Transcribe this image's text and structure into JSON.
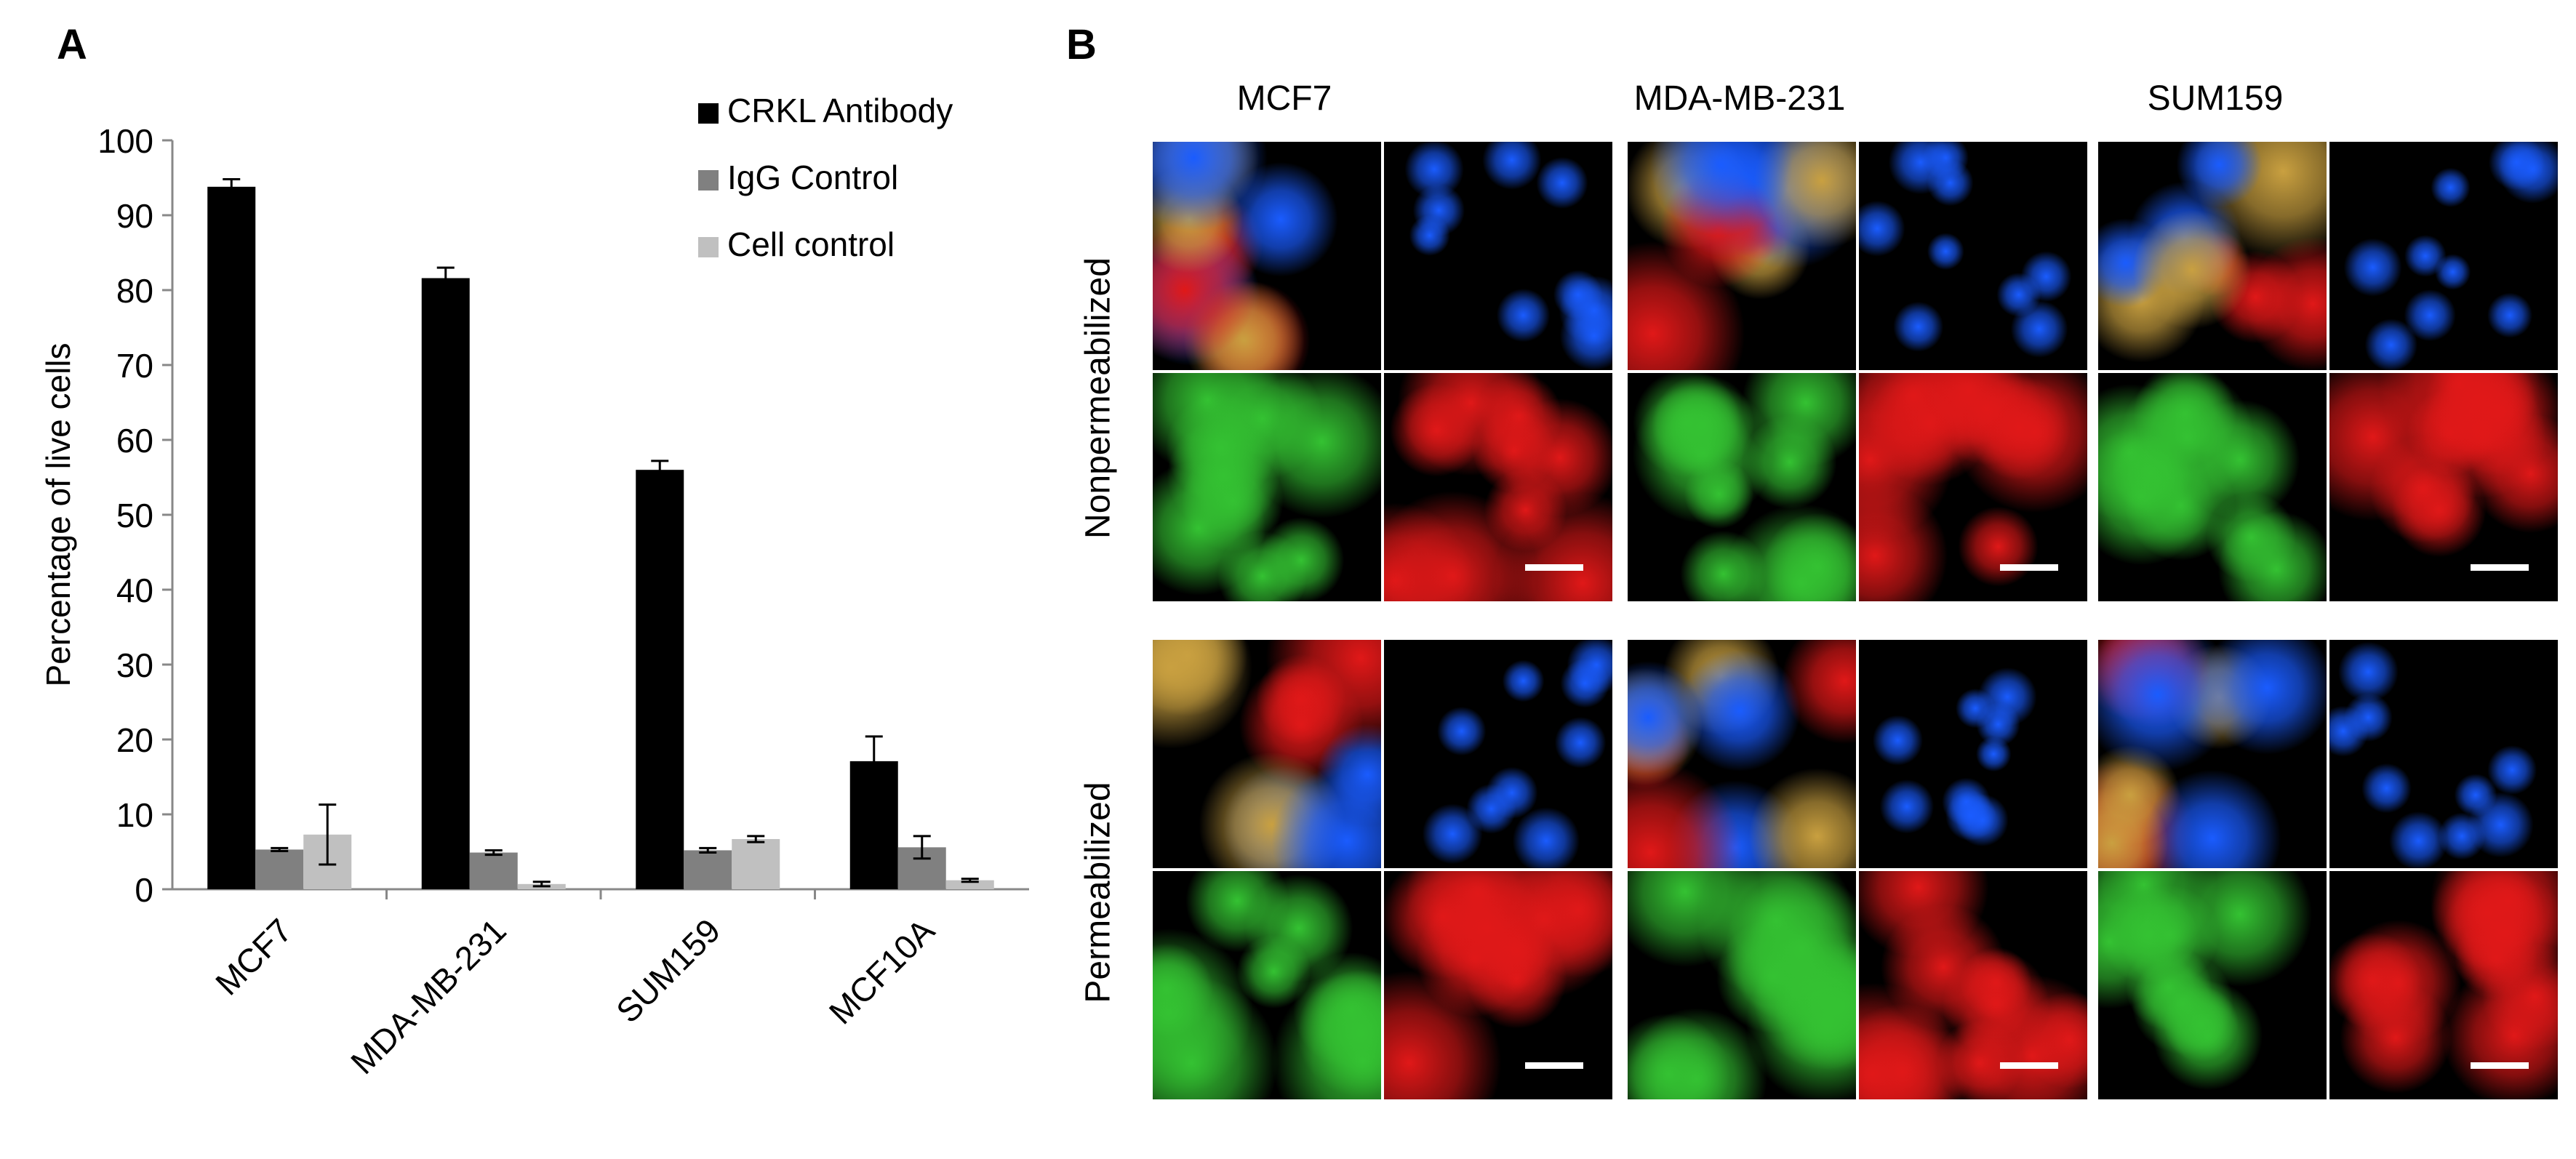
{
  "panel_labels": {
    "a": "A",
    "b": "B"
  },
  "chart_data": {
    "type": "bar",
    "title": "",
    "xlabel": "",
    "ylabel": "Percentage of live cells",
    "ylim": [
      0,
      100
    ],
    "yticks": [
      0,
      10,
      20,
      30,
      40,
      50,
      60,
      70,
      80,
      90,
      100
    ],
    "grid": false,
    "legend_position": "top-right",
    "categories": [
      "MCF7",
      "MDA-MB-231",
      "SUM159",
      "MCF10A"
    ],
    "series": [
      {
        "name": "CRKL Antibody",
        "color": "#000000",
        "values": [
          93.8,
          81.6,
          56.0,
          17.1
        ],
        "errors": [
          1.0,
          1.4,
          1.2,
          3.3
        ]
      },
      {
        "name": "IgG Control",
        "color": "#808080",
        "values": [
          5.3,
          4.9,
          5.2,
          5.6
        ],
        "errors": [
          0.2,
          0.3,
          0.3,
          1.5
        ]
      },
      {
        "name": "Cell control",
        "color": "#c0c0c0",
        "values": [
          7.3,
          0.7,
          6.7,
          1.2
        ],
        "errors": [
          4.0,
          0.3,
          0.4,
          0.2
        ]
      }
    ]
  },
  "panel_b": {
    "columns": [
      "MCF7",
      "MDA-MB-231",
      "SUM159"
    ],
    "rows": [
      "Nonpermeabilized",
      "Permeabilized"
    ],
    "channel_colors": {
      "merge": "#c9a040",
      "dapi": "#1a5cff",
      "green": "#34c232",
      "red": "#e01818"
    },
    "images": [
      {
        "column": "MCF7",
        "row": "Nonpermeabilized",
        "channel": "merge-icon"
      },
      {
        "column": "MCF7",
        "row": "Nonpermeabilized",
        "channel": "dapi-icon"
      },
      {
        "column": "MCF7",
        "row": "Nonpermeabilized",
        "channel": "green-icon"
      },
      {
        "column": "MCF7",
        "row": "Nonpermeabilized",
        "channel": "red-icon"
      }
    ]
  }
}
